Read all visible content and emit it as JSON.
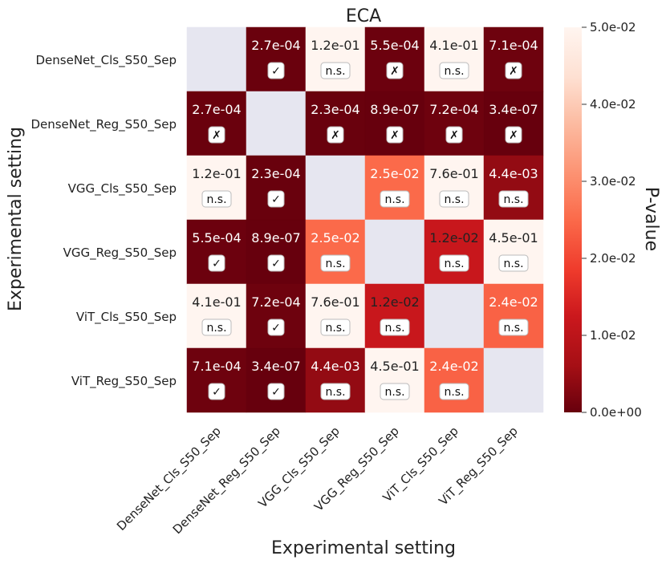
{
  "chart_data": {
    "type": "heatmap",
    "title": "ECA",
    "xlabel": "Experimental setting",
    "ylabel": "Experimental setting",
    "colorbar_label": "P-value",
    "colorbar_range": [
      0.0,
      0.05
    ],
    "colorbar_ticks": [
      {
        "value": 0.0,
        "label": "0.0e+00"
      },
      {
        "value": 0.01,
        "label": "1.0e-02"
      },
      {
        "value": 0.02,
        "label": "2.0e-02"
      },
      {
        "value": 0.03,
        "label": "3.0e-02"
      },
      {
        "value": 0.04,
        "label": "4.0e-02"
      },
      {
        "value": 0.05,
        "label": "5.0e-02"
      }
    ],
    "categories": [
      "DenseNet_Cls_S50_Sep",
      "DenseNet_Reg_S50_Sep",
      "VGG_Cls_S50_Sep",
      "VGG_Reg_S50_Sep",
      "ViT_Cls_S50_Sep",
      "ViT_Reg_S50_Sep"
    ],
    "values": [
      [
        null,
        0.00027,
        0.12,
        0.00055,
        0.41,
        0.00071
      ],
      [
        0.00027,
        null,
        0.00023,
        8.9e-07,
        0.00072,
        3.4e-07
      ],
      [
        0.12,
        0.00023,
        null,
        0.025,
        0.76,
        0.0044
      ],
      [
        0.00055,
        8.9e-07,
        0.025,
        null,
        0.012,
        0.45
      ],
      [
        0.41,
        0.00072,
        0.76,
        0.012,
        null,
        0.024
      ],
      [
        0.00071,
        3.4e-07,
        0.0044,
        0.45,
        0.024,
        null
      ]
    ],
    "labels": [
      [
        "",
        "2.7e-04",
        "1.2e-01",
        "5.5e-04",
        "4.1e-01",
        "7.1e-04"
      ],
      [
        "2.7e-04",
        "",
        "2.3e-04",
        "8.9e-07",
        "7.2e-04",
        "3.4e-07"
      ],
      [
        "1.2e-01",
        "2.3e-04",
        "",
        "2.5e-02",
        "7.6e-01",
        "4.4e-03"
      ],
      [
        "5.5e-04",
        "8.9e-07",
        "2.5e-02",
        "",
        "1.2e-02",
        "4.5e-01"
      ],
      [
        "4.1e-01",
        "7.2e-04",
        "7.6e-01",
        "1.2e-02",
        "",
        "2.4e-02"
      ],
      [
        "7.1e-04",
        "3.4e-07",
        "4.4e-03",
        "4.5e-01",
        "2.4e-02",
        ""
      ]
    ],
    "markers": [
      [
        "",
        "✓",
        "n.s.",
        "✗",
        "n.s.",
        "✗"
      ],
      [
        "✗",
        "",
        "✗",
        "✗",
        "✗",
        "✗"
      ],
      [
        "n.s.",
        "✓",
        "",
        "n.s.",
        "n.s.",
        "n.s."
      ],
      [
        "✓",
        "✓",
        "n.s.",
        "",
        "n.s.",
        "n.s."
      ],
      [
        "n.s.",
        "✓",
        "n.s.",
        "n.s.",
        "",
        "n.s."
      ],
      [
        "✓",
        "✓",
        "n.s.",
        "n.s.",
        "n.s.",
        ""
      ]
    ],
    "diagonal_color": "#e6e6f0",
    "colormap": "Reds_r"
  }
}
